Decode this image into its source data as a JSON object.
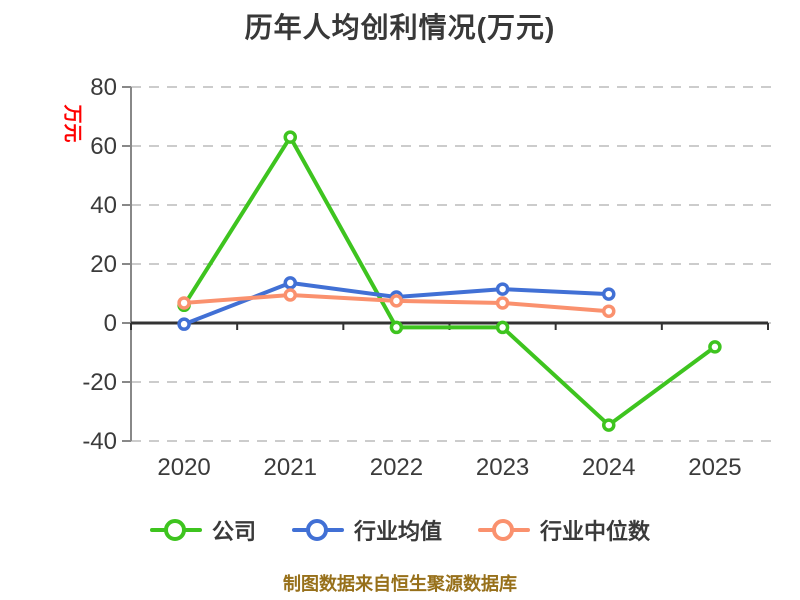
{
  "title": "历年人均创利情况(万元)",
  "y_axis_label": "万元",
  "caption": "制图数据来自恒生聚源数据库",
  "colors": {
    "company_green": "#3ec41f",
    "industry_avg_blue": "#4170d5",
    "industry_median_orange": "#fa916e",
    "y_axis_label_red": "#ff0000",
    "caption_gold": "#97701a",
    "title_text": "#383838",
    "tick_text": "#3b3b3b",
    "gridline": "#cccccc",
    "left_axis": "#888888",
    "zero_axis": "#333333"
  },
  "chart_data": {
    "type": "line",
    "title": "历年人均创利情况(万元)",
    "ylabel": "万元",
    "xlabel": "",
    "categories": [
      "2020",
      "2021",
      "2022",
      "2023",
      "2024",
      "2025"
    ],
    "series": [
      {
        "name": "公司",
        "color": "#3ec41f",
        "values": [
          6.0,
          63.0,
          -1.5,
          -1.5,
          -34.6,
          -8.1
        ]
      },
      {
        "name": "行业均值",
        "color": "#4170d5",
        "values": [
          -0.4,
          13.6,
          8.8,
          11.5,
          9.8,
          null
        ]
      },
      {
        "name": "行业中位数",
        "color": "#fa916e",
        "values": [
          6.8,
          9.5,
          7.5,
          6.8,
          4.0,
          null
        ]
      }
    ],
    "ylim": [
      -40,
      80
    ],
    "yticks": [
      80,
      60,
      40,
      20,
      0,
      -20,
      -40
    ],
    "grid": "horizontal-dashed",
    "legend_position": "bottom",
    "marker": "circle-white-fill"
  }
}
